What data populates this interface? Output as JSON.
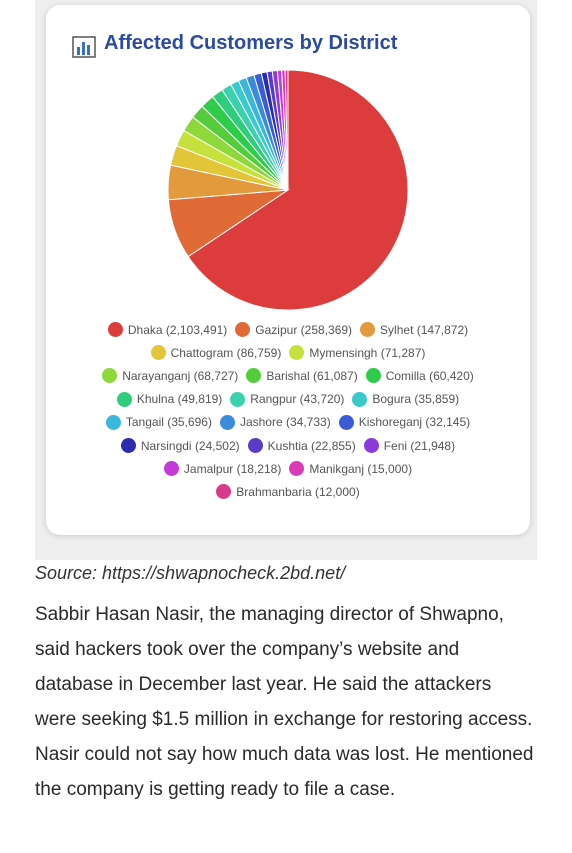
{
  "chart_data": {
    "type": "pie",
    "title": "Affected Customers by District",
    "categories": [
      "Dhaka",
      "Gazipur",
      "Sylhet",
      "Chattogram",
      "Mymensingh",
      "Narayanganj",
      "Barishal",
      "Comilla",
      "Khulna",
      "Rangpur",
      "Bogura",
      "Tangail",
      "Jashore",
      "Kishoreganj",
      "Narsingdi",
      "Kushtia",
      "Feni",
      "Jamalpur",
      "Manikganj",
      "Brahmanbaria"
    ],
    "values": [
      2103491,
      258369,
      147872,
      86759,
      71287,
      68727,
      61087,
      60420,
      49819,
      43720,
      35859,
      35696,
      34733,
      32145,
      24502,
      22855,
      21948,
      18218,
      15000,
      12000
    ],
    "value_labels": [
      "(2,103,491)",
      "(258,369)",
      "(147,872)",
      "(86,759)",
      "(71,287)",
      "(68,727)",
      "(61,087)",
      "(60,420)",
      "(49,819)",
      "(43,720)",
      "(35,859)",
      "(35,696)",
      "(34,733)",
      "(32,145)",
      "(24,502)",
      "(22,855)",
      "(21,948)",
      "(18,218)",
      "(15,000)",
      "(12,000)"
    ],
    "colors": [
      "#dc3c3c",
      "#df6a36",
      "#e29a3c",
      "#e3c53a",
      "#c6e03c",
      "#8fd83c",
      "#55cc3c",
      "#2fcc4c",
      "#2fcc7e",
      "#3bd0ae",
      "#3bcaca",
      "#3bb7dc",
      "#3a8cdb",
      "#3a5cd6",
      "#2a2bb0",
      "#5a3bc8",
      "#8a3bd8",
      "#c23bd9",
      "#d93bb8",
      "#d63c8c"
    ],
    "legend": "bottom"
  },
  "source": "Source: https://shwapnocheck.2bd.net/",
  "article": {
    "paragraph": "Sabbir Hasan Nasir, the managing director of Shwapno, said hackers took over the company’s website and database in December last year. He said the attackers were seeking $1.5 million in exchange for restoring access. Nasir could not say how much data was lost. He mentioned the company is getting ready to file a case."
  }
}
